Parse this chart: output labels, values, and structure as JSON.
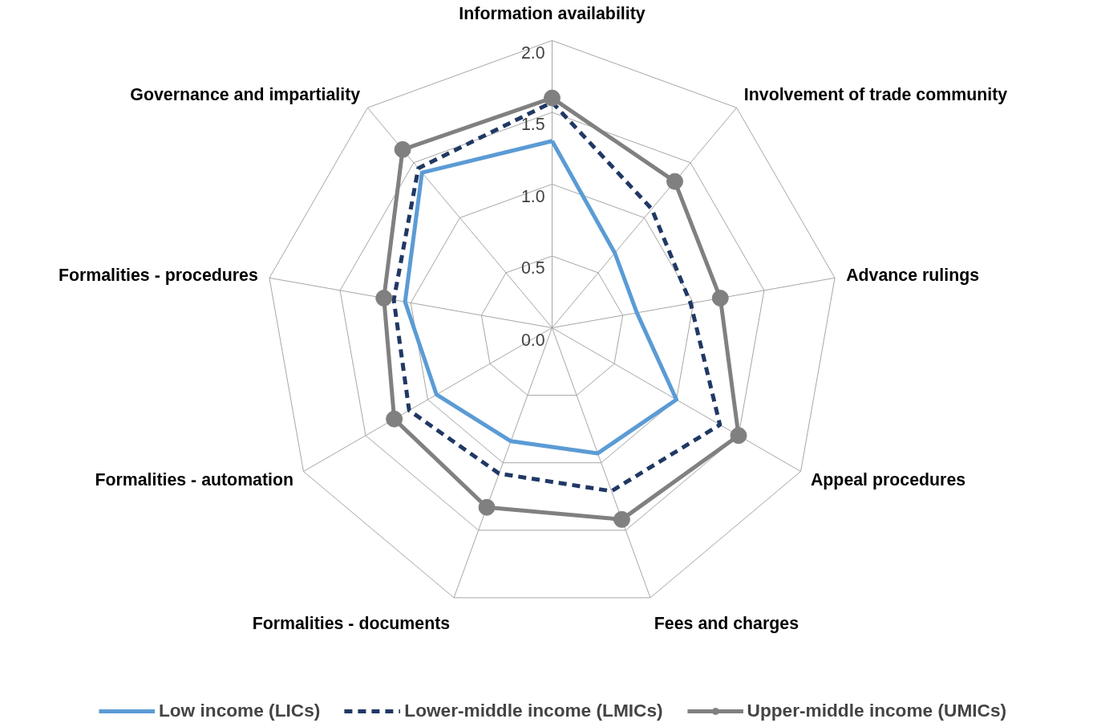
{
  "chart_data": {
    "type": "radar",
    "categories": [
      "Information availability",
      "Involvement of trade community",
      "Advance rulings",
      "Appeal procedures",
      "Fees and charges",
      "Formalities - documents",
      "Formalities - automation",
      "Formalities - procedures",
      "Governance and impartiality"
    ],
    "ylim": [
      0,
      2
    ],
    "yticks": [
      {
        "value": 0,
        "label": "0.0"
      },
      {
        "value": 0.5,
        "label": "0.5"
      },
      {
        "value": 1,
        "label": "1.0"
      },
      {
        "value": 1.5,
        "label": "1.5"
      },
      {
        "value": 2,
        "label": "2.0"
      }
    ],
    "legend": "bottom",
    "grid": true,
    "series": [
      {
        "name": "Low income (LICs)",
        "color": "#5b9bd5",
        "line_style": "solid",
        "marker": "none",
        "values": [
          1.3,
          0.68,
          0.6,
          1.0,
          0.93,
          0.84,
          0.93,
          1.04,
          1.41
        ]
      },
      {
        "name": "Lower-middle income (LMICs)",
        "color": "#203864",
        "line_style": "dashed",
        "marker": "none",
        "values": [
          1.57,
          1.08,
          0.98,
          1.35,
          1.21,
          1.08,
          1.15,
          1.12,
          1.45
        ]
      },
      {
        "name": "Upper-middle income (UMICs)",
        "color": "#808080",
        "line_style": "solid",
        "marker": "circle",
        "values": [
          1.6,
          1.33,
          1.19,
          1.5,
          1.42,
          1.33,
          1.27,
          1.19,
          1.62
        ]
      }
    ]
  }
}
